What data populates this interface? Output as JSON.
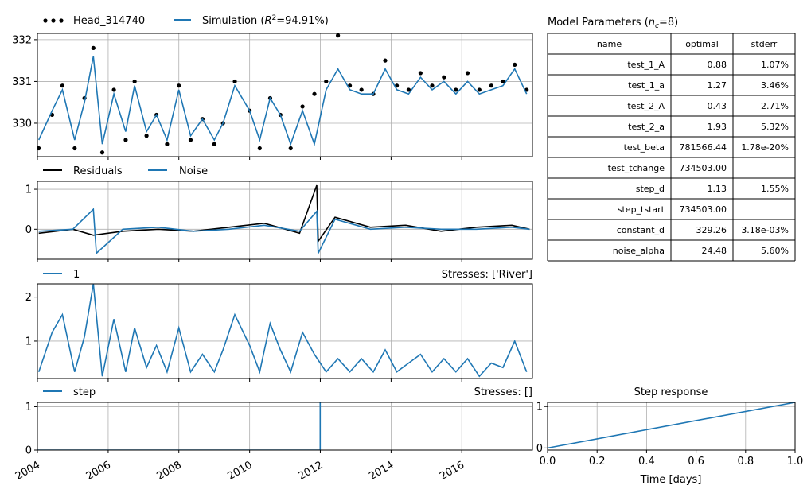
{
  "chart_data": [
    {
      "type": "line",
      "panel": "heads",
      "ylim": [
        329.2,
        332.15
      ],
      "yticks": [
        330,
        331,
        332
      ],
      "xlim": [
        "2004-01-01",
        "2017-12-31"
      ],
      "grid": true,
      "legend_placement": "top-left",
      "series": [
        {
          "name": "Head_314740",
          "style": "dots",
          "color": "#000000",
          "x": [
            "2004-01-15",
            "2004-06-01",
            "2004-09-15",
            "2005-01-20",
            "2005-05-01",
            "2005-08-01",
            "2005-11-01",
            "2006-03-01",
            "2006-07-01",
            "2006-10-01",
            "2007-02-01",
            "2007-05-15",
            "2007-09-01",
            "2008-01-01",
            "2008-05-01",
            "2008-09-01",
            "2009-01-01",
            "2009-04-01",
            "2009-08-01",
            "2010-01-01",
            "2010-04-15",
            "2010-08-01",
            "2010-11-15",
            "2011-03-01",
            "2011-07-01",
            "2011-11-01",
            "2012-03-01",
            "2012-07-01",
            "2012-11-01",
            "2013-03-01",
            "2013-07-01",
            "2013-11-01",
            "2014-03-01",
            "2014-07-01",
            "2014-11-01",
            "2015-03-01",
            "2015-07-01",
            "2015-11-01",
            "2016-03-01",
            "2016-07-01",
            "2016-11-01",
            "2017-03-01",
            "2017-07-01",
            "2017-11-01"
          ],
          "y": [
            329.4,
            330.2,
            330.9,
            329.4,
            330.6,
            331.8,
            329.3,
            330.8,
            329.6,
            331.0,
            329.7,
            330.2,
            329.5,
            330.9,
            329.6,
            330.1,
            329.5,
            330.0,
            331.0,
            330.3,
            329.4,
            330.6,
            330.2,
            329.4,
            330.4,
            330.7,
            331.0,
            332.1,
            330.9,
            330.8,
            330.7,
            331.5,
            330.9,
            330.8,
            331.2,
            330.9,
            331.1,
            330.8,
            331.2,
            330.8,
            330.9,
            331.0,
            331.4,
            330.8
          ]
        },
        {
          "name": "Simulation",
          "style": "line",
          "color": "#1f77b4",
          "x": [
            "2004-01-15",
            "2004-06-01",
            "2004-09-15",
            "2005-01-20",
            "2005-05-01",
            "2005-08-01",
            "2005-11-01",
            "2006-03-01",
            "2006-07-01",
            "2006-10-01",
            "2007-02-01",
            "2007-05-15",
            "2007-09-01",
            "2008-01-01",
            "2008-05-01",
            "2008-09-01",
            "2009-01-01",
            "2009-04-01",
            "2009-08-01",
            "2010-01-01",
            "2010-04-15",
            "2010-08-01",
            "2010-11-15",
            "2011-03-01",
            "2011-07-01",
            "2011-11-01",
            "2012-03-01",
            "2012-07-01",
            "2012-11-01",
            "2013-03-01",
            "2013-07-01",
            "2013-11-01",
            "2014-03-01",
            "2014-07-01",
            "2014-11-01",
            "2015-03-01",
            "2015-07-01",
            "2015-11-01",
            "2016-03-01",
            "2016-07-01",
            "2016-11-01",
            "2017-03-01",
            "2017-07-01",
            "2017-11-01"
          ],
          "y": [
            329.6,
            330.3,
            330.8,
            329.6,
            330.5,
            331.6,
            329.5,
            330.7,
            329.8,
            330.9,
            329.8,
            330.2,
            329.6,
            330.8,
            329.7,
            330.1,
            329.6,
            330.0,
            330.9,
            330.3,
            329.6,
            330.6,
            330.2,
            329.5,
            330.3,
            329.5,
            330.8,
            331.3,
            330.8,
            330.7,
            330.7,
            331.3,
            330.8,
            330.7,
            331.1,
            330.8,
            331.0,
            330.7,
            331.0,
            330.7,
            330.8,
            330.9,
            331.3,
            330.7
          ]
        }
      ]
    },
    {
      "type": "line",
      "panel": "residuals",
      "ylim": [
        -0.75,
        1.2
      ],
      "yticks": [
        0,
        1
      ],
      "grid": true,
      "legend_placement": "top-left",
      "series": [
        {
          "name": "Residuals",
          "color": "#000000",
          "x": [
            "2004-01-15",
            "2005-01-01",
            "2005-08-01",
            "2006-06-01",
            "2007-06-01",
            "2008-06-01",
            "2009-06-01",
            "2010-06-01",
            "2011-06-01",
            "2011-11-25",
            "2011-12-10",
            "2012-06-01",
            "2013-06-01",
            "2014-06-01",
            "2015-06-01",
            "2016-06-01",
            "2017-06-01",
            "2017-12-01"
          ],
          "y": [
            -0.1,
            0.0,
            -0.15,
            -0.05,
            0.0,
            -0.05,
            0.05,
            0.15,
            -0.1,
            1.1,
            -0.3,
            0.3,
            0.05,
            0.1,
            -0.05,
            0.05,
            0.1,
            0.0
          ]
        },
        {
          "name": "Noise",
          "color": "#1f77b4",
          "x": [
            "2004-01-15",
            "2005-01-01",
            "2005-08-01",
            "2005-09-01",
            "2006-06-01",
            "2007-06-01",
            "2008-06-01",
            "2009-06-01",
            "2010-06-01",
            "2011-06-01",
            "2011-11-25",
            "2011-12-10",
            "2012-06-01",
            "2013-06-01",
            "2014-06-01",
            "2015-06-01",
            "2016-06-01",
            "2017-06-01",
            "2017-12-01"
          ],
          "y": [
            -0.05,
            0.0,
            0.5,
            -0.6,
            0.0,
            0.05,
            -0.05,
            0.0,
            0.1,
            -0.05,
            0.45,
            -0.6,
            0.25,
            0.0,
            0.05,
            0.0,
            0.0,
            0.05,
            0.0
          ]
        }
      ]
    },
    {
      "type": "line",
      "panel": "contribution-river",
      "title_right": "Stresses: ['River']",
      "ylim": [
        0.15,
        2.3
      ],
      "yticks": [
        1,
        2
      ],
      "grid": true,
      "legend_placement": "top-left",
      "series": [
        {
          "name": "1",
          "color": "#1f77b4",
          "x": [
            "2004-01-15",
            "2004-06-01",
            "2004-09-15",
            "2005-01-20",
            "2005-05-01",
            "2005-08-01",
            "2005-11-01",
            "2006-03-01",
            "2006-07-01",
            "2006-10-01",
            "2007-02-01",
            "2007-05-15",
            "2007-09-01",
            "2008-01-01",
            "2008-05-01",
            "2008-09-01",
            "2009-01-01",
            "2009-04-01",
            "2009-08-01",
            "2010-01-01",
            "2010-04-15",
            "2010-08-01",
            "2010-11-15",
            "2011-03-01",
            "2011-07-01",
            "2011-11-01",
            "2012-03-01",
            "2012-07-01",
            "2012-11-01",
            "2013-03-01",
            "2013-07-01",
            "2013-11-01",
            "2014-03-01",
            "2014-07-01",
            "2014-11-01",
            "2015-03-01",
            "2015-07-01",
            "2015-11-01",
            "2016-03-01",
            "2016-07-01",
            "2016-11-01",
            "2017-03-01",
            "2017-07-01",
            "2017-11-01"
          ],
          "y": [
            0.3,
            1.2,
            1.6,
            0.3,
            1.1,
            2.3,
            0.2,
            1.5,
            0.3,
            1.3,
            0.4,
            0.9,
            0.3,
            1.3,
            0.3,
            0.7,
            0.3,
            0.8,
            1.6,
            0.9,
            0.3,
            1.4,
            0.8,
            0.3,
            1.2,
            0.7,
            0.3,
            0.6,
            0.3,
            0.6,
            0.3,
            0.8,
            0.3,
            0.5,
            0.7,
            0.3,
            0.6,
            0.3,
            0.6,
            0.2,
            0.5,
            0.4,
            1.0,
            0.3
          ]
        }
      ]
    },
    {
      "type": "line",
      "panel": "contribution-step",
      "title_right": "Stresses: []",
      "ylim": [
        0,
        1.1
      ],
      "yticks": [
        0,
        1
      ],
      "grid": true,
      "legend_placement": "top-left",
      "xticks": [
        "2004",
        "2006",
        "2008",
        "2010",
        "2012",
        "2014",
        "2016"
      ],
      "series": [
        {
          "name": "step",
          "color": "#1f77b4",
          "x": [
            "2004-01-01",
            "2011-12-31",
            "2011-12-31",
            "2011-12-31"
          ],
          "y": [
            0,
            0,
            1.1,
            0
          ]
        }
      ]
    },
    {
      "type": "line",
      "panel": "step-response",
      "title": "Step response",
      "xlabel": "Time [days]",
      "xlim": [
        0,
        1
      ],
      "ylim": [
        -0.05,
        1.1
      ],
      "xticks": [
        0.0,
        0.2,
        0.4,
        0.6,
        0.8,
        1.0
      ],
      "yticks": [
        0,
        1
      ],
      "grid": true,
      "series": [
        {
          "name": "",
          "color": "#1f77b4",
          "x": [
            0,
            1
          ],
          "y": [
            0,
            1.1
          ]
        }
      ]
    },
    {
      "type": "table",
      "panel": "model-parameters",
      "title_text": "Model Parameters (",
      "title_sub": "c",
      "title_tail": "=8)",
      "columns": [
        "name",
        "optimal",
        "stderr"
      ],
      "rows": [
        [
          "test_1_A",
          "0.88",
          "1.07%"
        ],
        [
          "test_1_a",
          "1.27",
          "3.46%"
        ],
        [
          "test_2_A",
          "0.43",
          "2.71%"
        ],
        [
          "test_2_a",
          "1.93",
          "5.32%"
        ],
        [
          "test_beta",
          "781566.44",
          "1.78e-20%"
        ],
        [
          "test_tchange",
          "734503.00",
          ""
        ],
        [
          "step_d",
          "1.13",
          "1.55%"
        ],
        [
          "step_tstart",
          "734503.00",
          ""
        ],
        [
          "constant_d",
          "329.26",
          "3.18e-03%"
        ],
        [
          "noise_alpha",
          "24.48",
          "5.60%"
        ]
      ]
    }
  ],
  "legend": {
    "head_label": "Head_314740",
    "sim_label_pre": "Simulation (",
    "sim_label_r": "R",
    "sim_label_post": "=94.91%)",
    "residuals_label": "Residuals",
    "noise_label": "Noise"
  }
}
